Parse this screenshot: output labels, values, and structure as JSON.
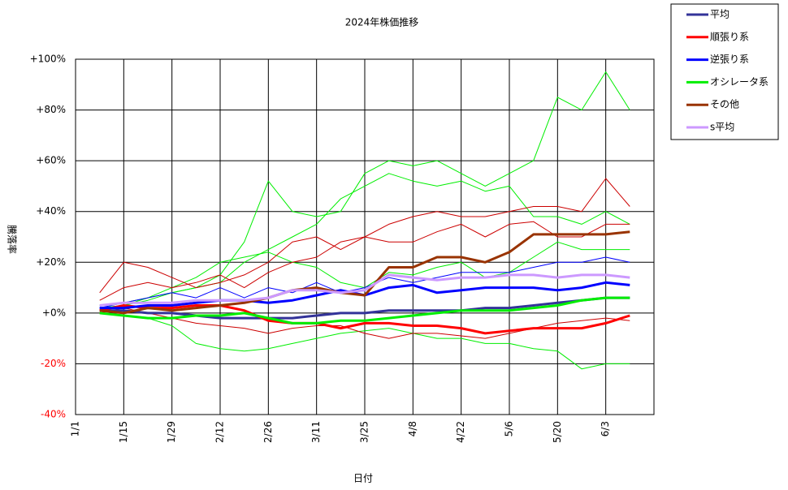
{
  "chart_data": {
    "type": "line",
    "title": "2024年株価推移",
    "x_label": "日付",
    "y_label": "騰落率",
    "categories": [
      "1/1",
      null,
      "1/15",
      null,
      "1/29",
      null,
      "2/12",
      null,
      "2/26",
      null,
      "3/11",
      null,
      "3/25",
      null,
      "4/8",
      null,
      "4/22",
      null,
      "5/6",
      null,
      "5/20",
      null,
      "6/3",
      null,
      null
    ],
    "ylim": [
      -40,
      100
    ],
    "yticks": [
      {
        "value": -40,
        "label": "-40%"
      },
      {
        "value": -20,
        "label": "-20%"
      },
      {
        "value": 0,
        "label": "+0%"
      },
      {
        "value": 20,
        "label": "+20%"
      },
      {
        "value": 40,
        "label": "+40%"
      },
      {
        "value": 60,
        "label": "+60%"
      },
      {
        "value": 80,
        "label": "+80%"
      },
      {
        "value": 100,
        "label": "+100%"
      }
    ],
    "negative_tick_color": "#ff0000",
    "grid": true,
    "legend": "outside-top-right",
    "series": [
      {
        "name": "平均",
        "color": "#333399",
        "values": [
          null,
          1,
          1,
          0,
          0,
          -1,
          -2,
          -2,
          -2,
          -2,
          -1,
          0,
          0,
          1,
          1,
          1,
          1,
          2,
          2,
          3,
          4,
          5,
          6,
          6,
          null
        ]
      },
      {
        "name": "順張り系",
        "color": "#ff0000",
        "values": [
          null,
          1,
          3,
          2,
          2,
          3,
          3,
          1,
          -3,
          -4,
          -4,
          -6,
          -4,
          -4,
          -5,
          -5,
          -6,
          -8,
          -7,
          -6,
          -6,
          -6,
          -4,
          -1,
          null
        ]
      },
      {
        "name": "逆張り系",
        "color": "#0000ff",
        "values": [
          null,
          2,
          2,
          3,
          3,
          4,
          5,
          5,
          4,
          5,
          7,
          9,
          7,
          10,
          11,
          8,
          9,
          10,
          10,
          10,
          9,
          10,
          12,
          11,
          null
        ]
      },
      {
        "name": "オシレータ系",
        "color": "#00ee00",
        "values": [
          null,
          0,
          -1,
          -2,
          -2,
          -1,
          -1,
          0,
          -2,
          -4,
          -4,
          -3,
          -3,
          -2,
          -1,
          0,
          1,
          1,
          1,
          2,
          3,
          5,
          6,
          6,
          null
        ]
      },
      {
        "name": "その他",
        "color": "#993300",
        "values": [
          null,
          1,
          0,
          2,
          1,
          2,
          3,
          4,
          6,
          9,
          10,
          8,
          7,
          18,
          18,
          22,
          22,
          20,
          24,
          31,
          31,
          31,
          31,
          32,
          null
        ]
      },
      {
        "name": "s平均",
        "color": "#cc99ff",
        "values": [
          null,
          3,
          4,
          4,
          4,
          5,
          5,
          5,
          6,
          9,
          9,
          8,
          9,
          15,
          14,
          13,
          14,
          14,
          15,
          15,
          14,
          15,
          15,
          14,
          null
        ]
      }
    ],
    "detail_series": [
      {
        "color": "#00ee00",
        "values": [
          null,
          2,
          3,
          5,
          8,
          10,
          15,
          28,
          52,
          40,
          38,
          40,
          55,
          60,
          58,
          60,
          55,
          50,
          55,
          60,
          85,
          80,
          95,
          80,
          null
        ]
      },
      {
        "color": "#00ee00",
        "values": [
          null,
          3,
          4,
          6,
          8,
          10,
          12,
          20,
          25,
          30,
          35,
          45,
          50,
          55,
          52,
          50,
          52,
          48,
          50,
          38,
          38,
          35,
          40,
          35,
          null
        ]
      },
      {
        "color": "#00ee00",
        "values": [
          null,
          0,
          -1,
          -2,
          -5,
          -12,
          -14,
          -15,
          -14,
          -12,
          -10,
          -8,
          -7,
          -6,
          -8,
          -10,
          -10,
          -12,
          -12,
          -14,
          -15,
          -22,
          -20,
          -20,
          null
        ]
      },
      {
        "color": "#00ee00",
        "values": [
          null,
          2,
          3,
          6,
          10,
          14,
          20,
          22,
          24,
          20,
          18,
          12,
          10,
          16,
          15,
          18,
          20,
          14,
          16,
          22,
          28,
          25,
          25,
          25,
          null
        ]
      },
      {
        "color": "#cc0000",
        "values": [
          null,
          8,
          20,
          18,
          14,
          10,
          12,
          15,
          20,
          28,
          30,
          25,
          30,
          35,
          38,
          40,
          38,
          38,
          40,
          42,
          42,
          40,
          53,
          42,
          null
        ]
      },
      {
        "color": "#cc0000",
        "values": [
          null,
          5,
          10,
          12,
          10,
          12,
          15,
          10,
          16,
          20,
          22,
          28,
          30,
          28,
          28,
          32,
          35,
          30,
          35,
          36,
          30,
          30,
          35,
          35,
          null
        ]
      },
      {
        "color": "#cc0000",
        "values": [
          null,
          0,
          2,
          0,
          -2,
          -4,
          -5,
          -6,
          -8,
          -6,
          -5,
          -5,
          -8,
          -10,
          -8,
          -8,
          -9,
          -10,
          -8,
          -6,
          -4,
          -3,
          -2,
          -3,
          null
        ]
      },
      {
        "color": "#0000ff",
        "values": [
          null,
          2,
          4,
          6,
          8,
          6,
          10,
          6,
          10,
          8,
          12,
          8,
          10,
          14,
          12,
          14,
          16,
          16,
          16,
          18,
          20,
          20,
          22,
          20,
          null
        ]
      }
    ]
  }
}
